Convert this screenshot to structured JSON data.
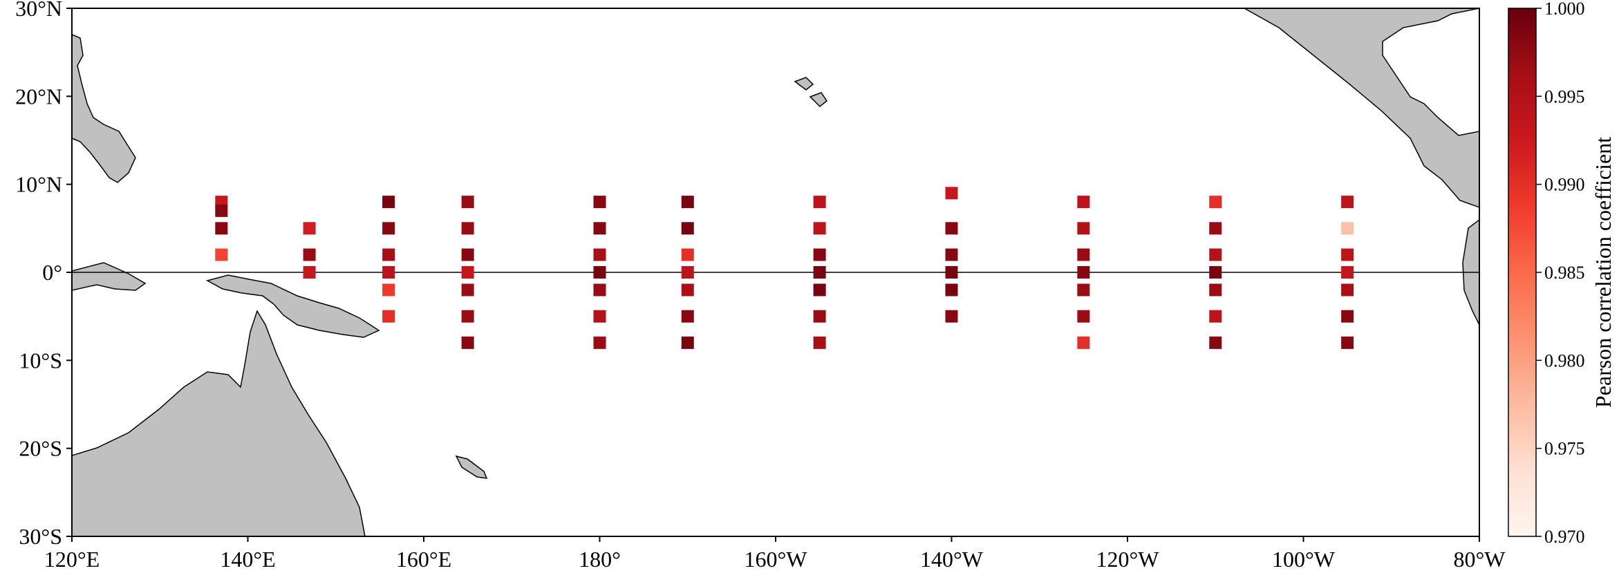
{
  "map": {
    "extent": {
      "lon": [
        120,
        280
      ],
      "lat": [
        -30,
        30
      ]
    },
    "land_color": "#c0c0c0",
    "coastline_color": "#000000",
    "equator_line": true,
    "x_ticks": [
      {
        "lon": 120,
        "label": "120°E"
      },
      {
        "lon": 140,
        "label": "140°E"
      },
      {
        "lon": 160,
        "label": "160°E"
      },
      {
        "lon": 180,
        "label": "180°"
      },
      {
        "lon": 200,
        "label": "160°W"
      },
      {
        "lon": 220,
        "label": "140°W"
      },
      {
        "lon": 240,
        "label": "120°W"
      },
      {
        "lon": 260,
        "label": "100°W"
      },
      {
        "lon": 280,
        "label": "80°W"
      }
    ],
    "y_ticks": [
      {
        "lat": 30,
        "label": "30°N"
      },
      {
        "lat": 20,
        "label": "20°N"
      },
      {
        "lat": 10,
        "label": "10°N"
      },
      {
        "lat": 0,
        "label": "0°"
      },
      {
        "lat": -10,
        "label": "10°S"
      },
      {
        "lat": -20,
        "label": "20°S"
      },
      {
        "lat": -30,
        "label": "30°S"
      }
    ],
    "land_names": [
      "new-guinea",
      "australia",
      "central-america",
      "philippines-luzon"
    ]
  },
  "colorbar": {
    "label": "Pearson correlation coefficient",
    "min": 0.97,
    "max": 1.0,
    "ticks": [
      "1.000",
      "0.995",
      "0.990",
      "0.985",
      "0.980",
      "0.975",
      "0.970"
    ],
    "colormap": "Reds",
    "stops": [
      "#fff5f0",
      "#fee0d2",
      "#fcbba1",
      "#fc9272",
      "#fb6a4a",
      "#ef3b2c",
      "#cb181d",
      "#a50f15",
      "#67000d"
    ]
  },
  "chart_data": {
    "type": "scatter",
    "x_label_unit": "longitude (°E, 0–360)",
    "points": [
      {
        "lon": 137,
        "lat": 8,
        "r": 0.993
      },
      {
        "lon": 137,
        "lat": 7,
        "r": 0.998
      },
      {
        "lon": 137,
        "lat": 5,
        "r": 0.998
      },
      {
        "lon": 137,
        "lat": 2,
        "r": 0.988
      },
      {
        "lon": 147,
        "lat": 5,
        "r": 0.992
      },
      {
        "lon": 147,
        "lat": 2,
        "r": 0.997
      },
      {
        "lon": 147,
        "lat": 0,
        "r": 0.993
      },
      {
        "lon": 156,
        "lat": 8,
        "r": 0.999
      },
      {
        "lon": 156,
        "lat": 5,
        "r": 0.998
      },
      {
        "lon": 156,
        "lat": 2,
        "r": 0.996
      },
      {
        "lon": 156,
        "lat": 0,
        "r": 0.994
      },
      {
        "lon": 156,
        "lat": -2,
        "r": 0.989
      },
      {
        "lon": 156,
        "lat": -5,
        "r": 0.99
      },
      {
        "lon": 165,
        "lat": 8,
        "r": 0.997
      },
      {
        "lon": 165,
        "lat": 5,
        "r": 0.997
      },
      {
        "lon": 165,
        "lat": 2,
        "r": 0.998
      },
      {
        "lon": 165,
        "lat": 0,
        "r": 0.993
      },
      {
        "lon": 165,
        "lat": -2,
        "r": 0.997
      },
      {
        "lon": 165,
        "lat": -5,
        "r": 0.997
      },
      {
        "lon": 165,
        "lat": -8,
        "r": 0.998
      },
      {
        "lon": 180,
        "lat": 8,
        "r": 0.998
      },
      {
        "lon": 180,
        "lat": 5,
        "r": 0.998
      },
      {
        "lon": 180,
        "lat": 2,
        "r": 0.996
      },
      {
        "lon": 180,
        "lat": 0,
        "r": 0.999
      },
      {
        "lon": 180,
        "lat": -2,
        "r": 0.997
      },
      {
        "lon": 180,
        "lat": -5,
        "r": 0.995
      },
      {
        "lon": 180,
        "lat": -8,
        "r": 0.997
      },
      {
        "lon": 190,
        "lat": 8,
        "r": 0.999
      },
      {
        "lon": 190,
        "lat": 5,
        "r": 0.999
      },
      {
        "lon": 190,
        "lat": 2,
        "r": 0.99
      },
      {
        "lon": 190,
        "lat": 0,
        "r": 0.994
      },
      {
        "lon": 190,
        "lat": -2,
        "r": 0.996
      },
      {
        "lon": 190,
        "lat": -5,
        "r": 0.998
      },
      {
        "lon": 190,
        "lat": -8,
        "r": 0.999
      },
      {
        "lon": 205,
        "lat": 8,
        "r": 0.994
      },
      {
        "lon": 205,
        "lat": 5,
        "r": 0.994
      },
      {
        "lon": 205,
        "lat": 2,
        "r": 0.998
      },
      {
        "lon": 205,
        "lat": 0,
        "r": 0.999
      },
      {
        "lon": 205,
        "lat": -2,
        "r": 0.999
      },
      {
        "lon": 205,
        "lat": -5,
        "r": 0.997
      },
      {
        "lon": 205,
        "lat": -8,
        "r": 0.996
      },
      {
        "lon": 220,
        "lat": 9,
        "r": 0.993
      },
      {
        "lon": 220,
        "lat": 5,
        "r": 0.998
      },
      {
        "lon": 220,
        "lat": 2,
        "r": 0.998
      },
      {
        "lon": 220,
        "lat": 0,
        "r": 0.999
      },
      {
        "lon": 220,
        "lat": -2,
        "r": 0.999
      },
      {
        "lon": 220,
        "lat": -5,
        "r": 0.998
      },
      {
        "lon": 235,
        "lat": 8,
        "r": 0.994
      },
      {
        "lon": 235,
        "lat": 5,
        "r": 0.995
      },
      {
        "lon": 235,
        "lat": 2,
        "r": 0.997
      },
      {
        "lon": 235,
        "lat": 0,
        "r": 0.998
      },
      {
        "lon": 235,
        "lat": -2,
        "r": 0.997
      },
      {
        "lon": 235,
        "lat": -5,
        "r": 0.997
      },
      {
        "lon": 235,
        "lat": -8,
        "r": 0.99
      },
      {
        "lon": 250,
        "lat": 8,
        "r": 0.99
      },
      {
        "lon": 250,
        "lat": 5,
        "r": 0.997
      },
      {
        "lon": 250,
        "lat": 2,
        "r": 0.995
      },
      {
        "lon": 250,
        "lat": 0,
        "r": 0.999
      },
      {
        "lon": 250,
        "lat": -2,
        "r": 0.997
      },
      {
        "lon": 250,
        "lat": -5,
        "r": 0.994
      },
      {
        "lon": 250,
        "lat": -8,
        "r": 0.998
      },
      {
        "lon": 265,
        "lat": 8,
        "r": 0.994
      },
      {
        "lon": 265,
        "lat": 5,
        "r": 0.977
      },
      {
        "lon": 265,
        "lat": 2,
        "r": 0.994
      },
      {
        "lon": 265,
        "lat": 0,
        "r": 0.993
      },
      {
        "lon": 265,
        "lat": -2,
        "r": 0.996
      },
      {
        "lon": 265,
        "lat": -5,
        "r": 0.998
      },
      {
        "lon": 265,
        "lat": -8,
        "r": 0.998
      }
    ]
  }
}
